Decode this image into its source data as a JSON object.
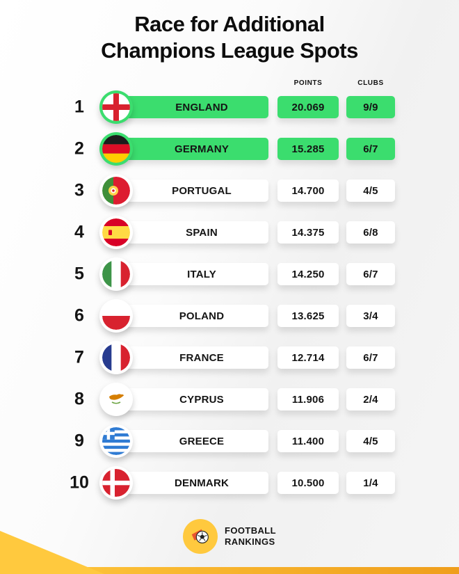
{
  "title": {
    "line1": "Race for Additional",
    "line2": "Champions League Spots"
  },
  "columns": {
    "points": "POINTS",
    "clubs": "CLUBS"
  },
  "table": {
    "rows": [
      {
        "rank": "1",
        "country": "ENGLAND",
        "points": "20.069",
        "clubs": "9/9",
        "highlighted": true,
        "flag": "england",
        "flag_icon": "flag-england-icon"
      },
      {
        "rank": "2",
        "country": "GERMANY",
        "points": "15.285",
        "clubs": "6/7",
        "highlighted": true,
        "flag": "germany",
        "flag_icon": "flag-germany-icon"
      },
      {
        "rank": "3",
        "country": "PORTUGAL",
        "points": "14.700",
        "clubs": "4/5",
        "highlighted": false,
        "flag": "portugal",
        "flag_icon": "flag-portugal-icon"
      },
      {
        "rank": "4",
        "country": "SPAIN",
        "points": "14.375",
        "clubs": "6/8",
        "highlighted": false,
        "flag": "spain",
        "flag_icon": "flag-spain-icon"
      },
      {
        "rank": "5",
        "country": "ITALY",
        "points": "14.250",
        "clubs": "6/7",
        "highlighted": false,
        "flag": "italy",
        "flag_icon": "flag-italy-icon"
      },
      {
        "rank": "6",
        "country": "POLAND",
        "points": "13.625",
        "clubs": "3/4",
        "highlighted": false,
        "flag": "poland",
        "flag_icon": "flag-poland-icon"
      },
      {
        "rank": "7",
        "country": "FRANCE",
        "points": "12.714",
        "clubs": "6/7",
        "highlighted": false,
        "flag": "france",
        "flag_icon": "flag-france-icon"
      },
      {
        "rank": "8",
        "country": "CYPRUS",
        "points": "11.906",
        "clubs": "2/4",
        "highlighted": false,
        "flag": "cyprus",
        "flag_icon": "flag-cyprus-icon"
      },
      {
        "rank": "9",
        "country": "GREECE",
        "points": "11.400",
        "clubs": "4/5",
        "highlighted": false,
        "flag": "greece",
        "flag_icon": "flag-greece-icon"
      },
      {
        "rank": "10",
        "country": "DENMARK",
        "points": "10.500",
        "clubs": "1/4",
        "highlighted": false,
        "flag": "denmark",
        "flag_icon": "flag-denmark-icon"
      }
    ]
  },
  "footer": {
    "logo_line1": "FOOTBALL",
    "logo_line2": "RANKINGS",
    "logo_icon": "football-rankings-logo-icon"
  },
  "colors": {
    "highlight_green": "#3bdd6e",
    "accent_yellow": "#ffc93e",
    "accent_orange": "#ef9e1c"
  }
}
